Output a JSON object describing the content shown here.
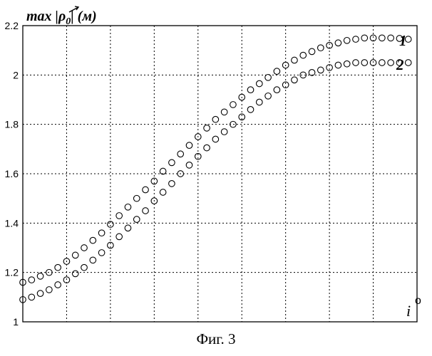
{
  "chart_data": {
    "type": "scatter",
    "title": "",
    "ylabel": {
      "prefix": "max |",
      "symbol": "ρ",
      "subscript": "0",
      "suffix": "| (м)"
    },
    "xlabel": {
      "base": "i",
      "sup": "o"
    },
    "xlim": [
      0,
      90
    ],
    "ylim": [
      1,
      2.2
    ],
    "xticks": [
      0,
      10,
      20,
      30,
      40,
      50,
      60,
      70,
      80,
      90
    ],
    "yticks": [
      1,
      1.2,
      1.4,
      1.6,
      1.8,
      2,
      2.2
    ],
    "ytick_labels": [
      "1",
      "1.2",
      "1.4",
      "1.6",
      "1.8",
      "2",
      "2.2"
    ],
    "grid": true,
    "marker": "open-circle",
    "series": [
      {
        "name": "1",
        "x": [
          0,
          2,
          4,
          6,
          8,
          10,
          12,
          14,
          16,
          18,
          20,
          22,
          24,
          26,
          28,
          30,
          32,
          34,
          36,
          38,
          40,
          42,
          44,
          46,
          48,
          50,
          52,
          54,
          56,
          58,
          60,
          62,
          64,
          66,
          68,
          70,
          72,
          74,
          76,
          78,
          80,
          82,
          84,
          86,
          88
        ],
        "y": [
          1.16,
          1.17,
          1.185,
          1.2,
          1.22,
          1.245,
          1.27,
          1.3,
          1.33,
          1.36,
          1.395,
          1.43,
          1.465,
          1.5,
          1.535,
          1.57,
          1.61,
          1.645,
          1.68,
          1.715,
          1.75,
          1.785,
          1.82,
          1.85,
          1.88,
          1.91,
          1.94,
          1.965,
          1.99,
          2.015,
          2.04,
          2.06,
          2.08,
          2.095,
          2.11,
          2.12,
          2.13,
          2.14,
          2.145,
          2.15,
          2.15,
          2.15,
          2.15,
          2.148,
          2.145
        ]
      },
      {
        "name": "2",
        "x": [
          0,
          2,
          4,
          6,
          8,
          10,
          12,
          14,
          16,
          18,
          20,
          22,
          24,
          26,
          28,
          30,
          32,
          34,
          36,
          38,
          40,
          42,
          44,
          46,
          48,
          50,
          52,
          54,
          56,
          58,
          60,
          62,
          64,
          66,
          68,
          70,
          72,
          74,
          76,
          78,
          80,
          82,
          84,
          86,
          88
        ],
        "y": [
          1.09,
          1.1,
          1.115,
          1.13,
          1.15,
          1.17,
          1.195,
          1.22,
          1.25,
          1.28,
          1.31,
          1.345,
          1.38,
          1.415,
          1.45,
          1.49,
          1.525,
          1.56,
          1.6,
          1.635,
          1.67,
          1.705,
          1.74,
          1.77,
          1.8,
          1.83,
          1.86,
          1.89,
          1.915,
          1.94,
          1.96,
          1.98,
          2.0,
          2.01,
          2.02,
          2.03,
          2.04,
          2.045,
          2.05,
          2.05,
          2.05,
          2.05,
          2.05,
          2.05,
          2.05
        ]
      }
    ]
  },
  "caption": "Фиг. 3"
}
